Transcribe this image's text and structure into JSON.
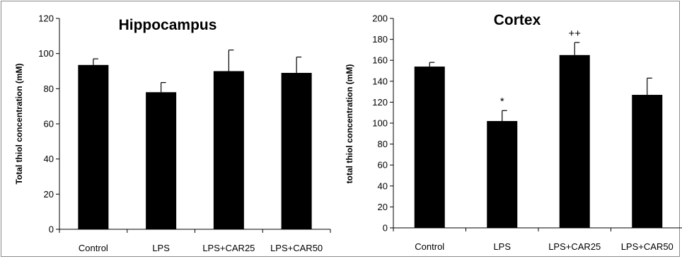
{
  "chart_data": [
    {
      "type": "bar",
      "title": "Hippocampus",
      "ylabel": "Total thiol concentration (mM)",
      "xlabel": "",
      "categories": [
        "Control",
        "LPS",
        "LPS+CAR25",
        "LPS+CAR50"
      ],
      "values": [
        93.5,
        78,
        90,
        89
      ],
      "errors": [
        3.5,
        5.5,
        12,
        9
      ],
      "annotations": [
        "",
        "",
        "",
        ""
      ],
      "ylim": [
        0,
        120
      ],
      "yticks": [
        0,
        20,
        40,
        60,
        80,
        100,
        120
      ],
      "ytick_labels": [
        "0",
        "20",
        "40",
        "60",
        "80",
        "100",
        "120"
      ],
      "grid": false,
      "bar_color": "#000000"
    },
    {
      "type": "bar",
      "title": "Cortex",
      "ylabel": "total thiol concentration (mM)",
      "xlabel": "",
      "categories": [
        "Control",
        "LPS",
        "LPS+CAR25",
        "LPS+CAR50"
      ],
      "values": [
        154,
        102,
        165,
        127
      ],
      "errors": [
        4,
        10,
        12,
        16
      ],
      "annotations": [
        "",
        "*",
        "++",
        ""
      ],
      "ylim": [
        0,
        200
      ],
      "yticks": [
        0,
        20,
        40,
        60,
        80,
        100,
        120,
        140,
        160,
        180,
        200
      ],
      "ytick_labels": [
        "0",
        "20",
        "40",
        "60",
        "80",
        "100",
        "120",
        "140",
        "160",
        "180",
        "200"
      ],
      "grid": false,
      "bar_color": "#000000"
    }
  ]
}
